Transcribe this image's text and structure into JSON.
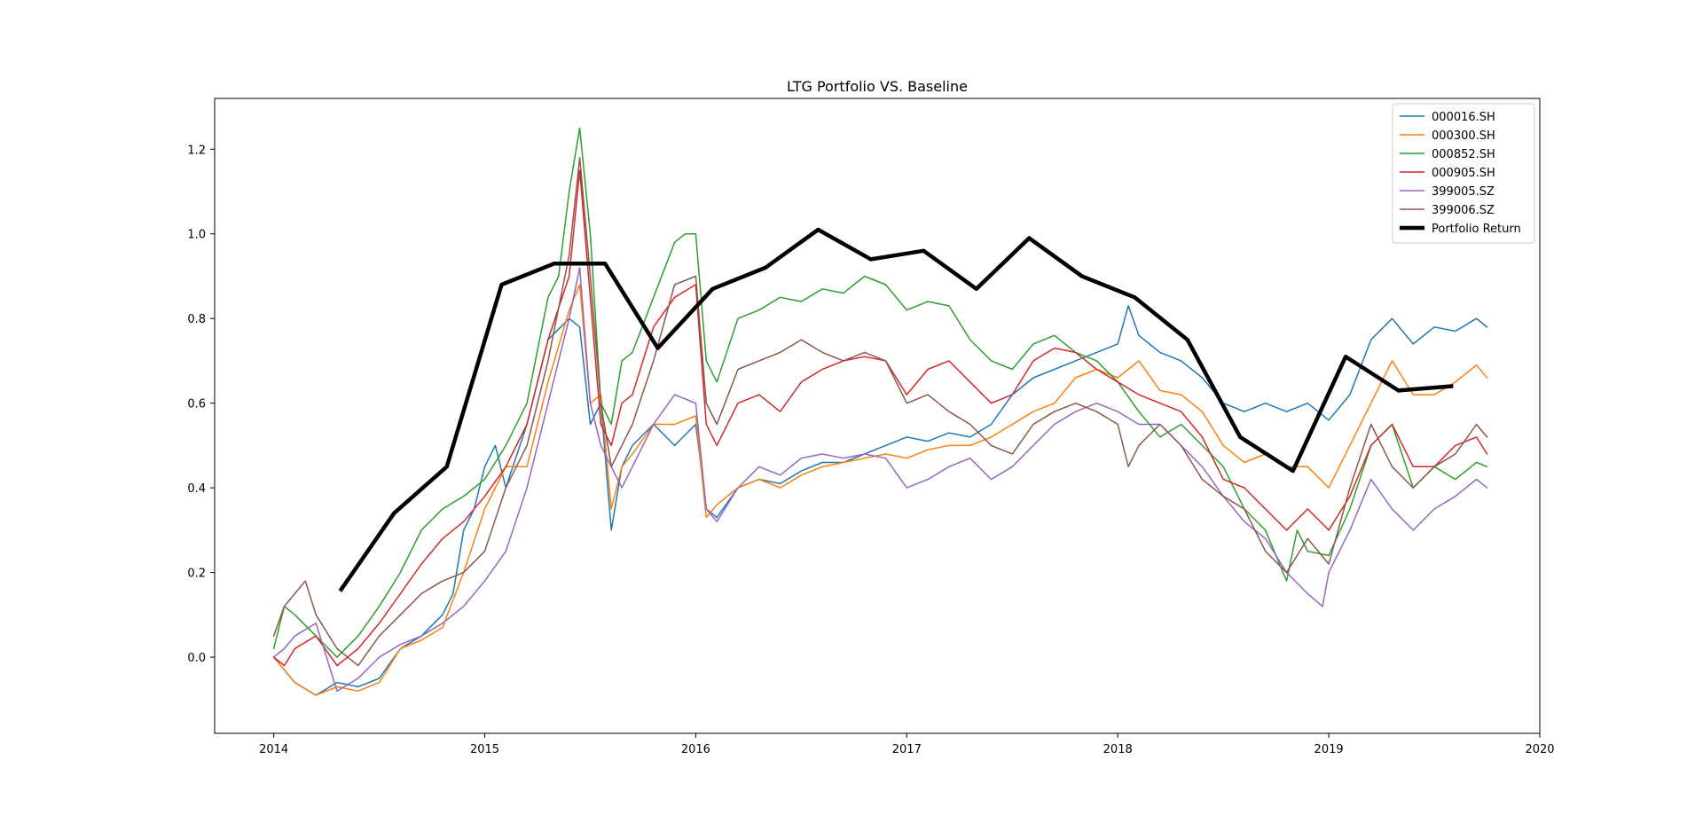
{
  "chart_data": {
    "type": "line",
    "title": "LTG Portfolio VS. Baseline",
    "xlabel": "",
    "ylabel": "",
    "xlim": [
      2013.72,
      2020.0
    ],
    "ylim": [
      -0.18,
      1.32
    ],
    "x_ticks": [
      2014,
      2015,
      2016,
      2017,
      2018,
      2019,
      2020
    ],
    "x_tick_labels": [
      "2014",
      "2015",
      "2016",
      "2017",
      "2018",
      "2019",
      "2020"
    ],
    "y_ticks": [
      0.0,
      0.2,
      0.4,
      0.6,
      0.8,
      1.0,
      1.2
    ],
    "y_tick_labels": [
      "0.0",
      "0.2",
      "0.4",
      "0.6",
      "0.8",
      "1.0",
      "1.2"
    ],
    "grid": false,
    "legend_position": "top-right",
    "series": [
      {
        "name": "000016.SH",
        "color": "#1f77b4",
        "width": 1.5,
        "x": [
          2014.0,
          2014.1,
          2014.2,
          2014.3,
          2014.4,
          2014.5,
          2014.6,
          2014.7,
          2014.8,
          2014.85,
          2014.9,
          2014.95,
          2015.0,
          2015.05,
          2015.1,
          2015.2,
          2015.3,
          2015.4,
          2015.45,
          2015.5,
          2015.55,
          2015.6,
          2015.65,
          2015.7,
          2015.8,
          2015.9,
          2016.0,
          2016.05,
          2016.1,
          2016.2,
          2016.3,
          2016.4,
          2016.5,
          2016.6,
          2016.7,
          2016.8,
          2016.9,
          2017.0,
          2017.1,
          2017.2,
          2017.3,
          2017.4,
          2017.5,
          2017.6,
          2017.7,
          2017.8,
          2017.9,
          2018.0,
          2018.05,
          2018.1,
          2018.2,
          2018.3,
          2018.4,
          2018.5,
          2018.6,
          2018.7,
          2018.8,
          2018.9,
          2019.0,
          2019.1,
          2019.2,
          2019.3,
          2019.4,
          2019.5,
          2019.6,
          2019.7,
          2019.75
        ],
        "y": [
          0.0,
          -0.06,
          -0.09,
          -0.06,
          -0.07,
          -0.05,
          0.02,
          0.05,
          0.1,
          0.15,
          0.3,
          0.35,
          0.45,
          0.5,
          0.4,
          0.55,
          0.75,
          0.8,
          0.78,
          0.55,
          0.6,
          0.3,
          0.45,
          0.5,
          0.55,
          0.5,
          0.55,
          0.35,
          0.33,
          0.4,
          0.42,
          0.41,
          0.44,
          0.46,
          0.46,
          0.48,
          0.5,
          0.52,
          0.51,
          0.53,
          0.52,
          0.55,
          0.62,
          0.66,
          0.68,
          0.7,
          0.72,
          0.74,
          0.83,
          0.76,
          0.72,
          0.7,
          0.66,
          0.6,
          0.58,
          0.6,
          0.58,
          0.6,
          0.56,
          0.62,
          0.75,
          0.8,
          0.74,
          0.78,
          0.77,
          0.8,
          0.78
        ]
      },
      {
        "name": "000300.SH",
        "color": "#ff7f0e",
        "width": 1.5,
        "x": [
          2014.0,
          2014.1,
          2014.2,
          2014.3,
          2014.4,
          2014.5,
          2014.6,
          2014.7,
          2014.8,
          2014.9,
          2015.0,
          2015.1,
          2015.2,
          2015.3,
          2015.4,
          2015.45,
          2015.5,
          2015.55,
          2015.6,
          2015.65,
          2015.7,
          2015.8,
          2015.9,
          2016.0,
          2016.05,
          2016.1,
          2016.2,
          2016.3,
          2016.4,
          2016.5,
          2016.6,
          2016.7,
          2016.8,
          2016.9,
          2017.0,
          2017.1,
          2017.2,
          2017.3,
          2017.4,
          2017.5,
          2017.6,
          2017.7,
          2017.8,
          2017.9,
          2018.0,
          2018.1,
          2018.2,
          2018.3,
          2018.4,
          2018.5,
          2018.6,
          2018.7,
          2018.8,
          2018.9,
          2019.0,
          2019.1,
          2019.2,
          2019.3,
          2019.4,
          2019.5,
          2019.6,
          2019.7,
          2019.75
        ],
        "y": [
          0.0,
          -0.06,
          -0.09,
          -0.07,
          -0.08,
          -0.06,
          0.02,
          0.04,
          0.07,
          0.2,
          0.35,
          0.45,
          0.45,
          0.65,
          0.82,
          0.88,
          0.6,
          0.62,
          0.35,
          0.45,
          0.48,
          0.55,
          0.55,
          0.57,
          0.33,
          0.36,
          0.4,
          0.42,
          0.4,
          0.43,
          0.45,
          0.46,
          0.47,
          0.48,
          0.47,
          0.49,
          0.5,
          0.5,
          0.52,
          0.55,
          0.58,
          0.6,
          0.66,
          0.68,
          0.66,
          0.7,
          0.63,
          0.62,
          0.58,
          0.5,
          0.46,
          0.48,
          0.45,
          0.45,
          0.4,
          0.5,
          0.6,
          0.7,
          0.62,
          0.62,
          0.65,
          0.69,
          0.66
        ]
      },
      {
        "name": "000852.SH",
        "color": "#2ca02c",
        "width": 1.5,
        "x": [
          2014.0,
          2014.05,
          2014.1,
          2014.2,
          2014.3,
          2014.4,
          2014.5,
          2014.6,
          2014.7,
          2014.8,
          2014.9,
          2015.0,
          2015.1,
          2015.2,
          2015.3,
          2015.35,
          2015.4,
          2015.45,
          2015.5,
          2015.55,
          2015.6,
          2015.65,
          2015.7,
          2015.8,
          2015.9,
          2015.95,
          2016.0,
          2016.05,
          2016.1,
          2016.2,
          2016.3,
          2016.4,
          2016.5,
          2016.6,
          2016.7,
          2016.8,
          2016.9,
          2017.0,
          2017.1,
          2017.2,
          2017.3,
          2017.4,
          2017.5,
          2017.6,
          2017.7,
          2017.8,
          2017.9,
          2018.0,
          2018.1,
          2018.2,
          2018.3,
          2018.4,
          2018.5,
          2018.6,
          2018.7,
          2018.8,
          2018.85,
          2018.9,
          2019.0,
          2019.1,
          2019.2,
          2019.3,
          2019.4,
          2019.5,
          2019.6,
          2019.7,
          2019.75
        ],
        "y": [
          0.02,
          0.12,
          0.1,
          0.05,
          0.0,
          0.05,
          0.12,
          0.2,
          0.3,
          0.35,
          0.38,
          0.42,
          0.5,
          0.6,
          0.85,
          0.9,
          1.1,
          1.25,
          1.0,
          0.6,
          0.55,
          0.7,
          0.72,
          0.85,
          0.98,
          1.0,
          1.0,
          0.7,
          0.65,
          0.8,
          0.82,
          0.85,
          0.84,
          0.87,
          0.86,
          0.9,
          0.88,
          0.82,
          0.84,
          0.83,
          0.75,
          0.7,
          0.68,
          0.74,
          0.76,
          0.72,
          0.7,
          0.65,
          0.58,
          0.52,
          0.55,
          0.5,
          0.45,
          0.35,
          0.3,
          0.18,
          0.3,
          0.25,
          0.24,
          0.35,
          0.5,
          0.55,
          0.4,
          0.45,
          0.42,
          0.46,
          0.45
        ]
      },
      {
        "name": "000905.SH",
        "color": "#d62728",
        "width": 1.5,
        "x": [
          2014.0,
          2014.05,
          2014.1,
          2014.2,
          2014.3,
          2014.4,
          2014.5,
          2014.6,
          2014.7,
          2014.8,
          2014.9,
          2015.0,
          2015.1,
          2015.2,
          2015.3,
          2015.4,
          2015.45,
          2015.5,
          2015.55,
          2015.6,
          2015.65,
          2015.7,
          2015.8,
          2015.9,
          2016.0,
          2016.05,
          2016.1,
          2016.2,
          2016.3,
          2016.4,
          2016.5,
          2016.6,
          2016.7,
          2016.8,
          2016.9,
          2017.0,
          2017.1,
          2017.2,
          2017.3,
          2017.4,
          2017.5,
          2017.6,
          2017.7,
          2017.8,
          2017.9,
          2018.0,
          2018.1,
          2018.2,
          2018.3,
          2018.4,
          2018.5,
          2018.6,
          2018.7,
          2018.8,
          2018.9,
          2019.0,
          2019.1,
          2019.2,
          2019.3,
          2019.4,
          2019.5,
          2019.6,
          2019.7,
          2019.75
        ],
        "y": [
          0.0,
          -0.02,
          0.02,
          0.05,
          -0.02,
          0.02,
          0.08,
          0.15,
          0.22,
          0.28,
          0.32,
          0.38,
          0.45,
          0.55,
          0.75,
          0.9,
          1.15,
          0.85,
          0.55,
          0.5,
          0.6,
          0.62,
          0.78,
          0.85,
          0.88,
          0.55,
          0.5,
          0.6,
          0.62,
          0.58,
          0.65,
          0.68,
          0.7,
          0.71,
          0.7,
          0.62,
          0.68,
          0.7,
          0.65,
          0.6,
          0.62,
          0.7,
          0.73,
          0.72,
          0.68,
          0.65,
          0.62,
          0.6,
          0.58,
          0.52,
          0.42,
          0.4,
          0.35,
          0.3,
          0.35,
          0.3,
          0.38,
          0.5,
          0.55,
          0.45,
          0.45,
          0.5,
          0.52,
          0.48
        ]
      },
      {
        "name": "399005.SZ",
        "color": "#9467bd",
        "width": 1.5,
        "x": [
          2014.0,
          2014.05,
          2014.1,
          2014.2,
          2014.3,
          2014.4,
          2014.5,
          2014.6,
          2014.7,
          2014.8,
          2014.9,
          2015.0,
          2015.1,
          2015.2,
          2015.3,
          2015.4,
          2015.45,
          2015.5,
          2015.55,
          2015.6,
          2015.65,
          2015.7,
          2015.8,
          2015.9,
          2016.0,
          2016.05,
          2016.1,
          2016.2,
          2016.3,
          2016.4,
          2016.5,
          2016.6,
          2016.7,
          2016.8,
          2016.9,
          2017.0,
          2017.1,
          2017.2,
          2017.3,
          2017.4,
          2017.5,
          2017.6,
          2017.7,
          2017.8,
          2017.9,
          2018.0,
          2018.1,
          2018.2,
          2018.3,
          2018.4,
          2018.5,
          2018.6,
          2018.7,
          2018.8,
          2018.9,
          2018.97,
          2019.0,
          2019.1,
          2019.2,
          2019.3,
          2019.4,
          2019.5,
          2019.6,
          2019.7,
          2019.75
        ],
        "y": [
          0.0,
          0.02,
          0.05,
          0.08,
          -0.08,
          -0.05,
          0.0,
          0.03,
          0.05,
          0.08,
          0.12,
          0.18,
          0.25,
          0.4,
          0.6,
          0.8,
          0.92,
          0.6,
          0.5,
          0.45,
          0.4,
          0.45,
          0.55,
          0.62,
          0.6,
          0.35,
          0.32,
          0.4,
          0.45,
          0.43,
          0.47,
          0.48,
          0.47,
          0.48,
          0.47,
          0.4,
          0.42,
          0.45,
          0.47,
          0.42,
          0.45,
          0.5,
          0.55,
          0.58,
          0.6,
          0.58,
          0.55,
          0.55,
          0.5,
          0.45,
          0.38,
          0.32,
          0.28,
          0.2,
          0.15,
          0.12,
          0.2,
          0.3,
          0.42,
          0.35,
          0.3,
          0.35,
          0.38,
          0.42,
          0.4
        ]
      },
      {
        "name": "399006.SZ",
        "color": "#8c564b",
        "width": 1.5,
        "x": [
          2014.0,
          2014.05,
          2014.1,
          2014.15,
          2014.2,
          2014.3,
          2014.4,
          2014.5,
          2014.6,
          2014.7,
          2014.8,
          2014.9,
          2015.0,
          2015.1,
          2015.2,
          2015.3,
          2015.4,
          2015.45,
          2015.5,
          2015.55,
          2015.6,
          2015.65,
          2015.7,
          2015.8,
          2015.9,
          2016.0,
          2016.05,
          2016.1,
          2016.2,
          2016.3,
          2016.4,
          2016.5,
          2016.6,
          2016.7,
          2016.8,
          2016.9,
          2017.0,
          2017.1,
          2017.2,
          2017.3,
          2017.4,
          2017.5,
          2017.6,
          2017.7,
          2017.8,
          2017.9,
          2018.0,
          2018.05,
          2018.1,
          2018.2,
          2018.3,
          2018.4,
          2018.5,
          2018.6,
          2018.7,
          2018.8,
          2018.9,
          2019.0,
          2019.1,
          2019.2,
          2019.3,
          2019.4,
          2019.5,
          2019.6,
          2019.7,
          2019.75
        ],
        "y": [
          0.05,
          0.12,
          0.15,
          0.18,
          0.1,
          0.02,
          -0.02,
          0.05,
          0.1,
          0.15,
          0.18,
          0.2,
          0.25,
          0.4,
          0.5,
          0.7,
          0.95,
          1.18,
          0.9,
          0.6,
          0.45,
          0.5,
          0.55,
          0.7,
          0.88,
          0.9,
          0.6,
          0.55,
          0.68,
          0.7,
          0.72,
          0.75,
          0.72,
          0.7,
          0.72,
          0.7,
          0.6,
          0.62,
          0.58,
          0.55,
          0.5,
          0.48,
          0.55,
          0.58,
          0.6,
          0.58,
          0.55,
          0.45,
          0.5,
          0.55,
          0.5,
          0.42,
          0.38,
          0.35,
          0.25,
          0.2,
          0.28,
          0.22,
          0.4,
          0.55,
          0.45,
          0.4,
          0.45,
          0.48,
          0.55,
          0.52
        ]
      },
      {
        "name": "Portfolio Return",
        "color": "#000000",
        "width": 4.5,
        "x": [
          2014.32,
          2014.57,
          2014.82,
          2015.08,
          2015.33,
          2015.57,
          2015.82,
          2016.08,
          2016.33,
          2016.58,
          2016.83,
          2017.08,
          2017.33,
          2017.58,
          2017.83,
          2018.08,
          2018.33,
          2018.58,
          2018.83,
          2019.08,
          2019.33,
          2019.58
        ],
        "y": [
          0.16,
          0.34,
          0.45,
          0.88,
          0.93,
          0.93,
          0.73,
          0.87,
          0.92,
          1.01,
          0.94,
          0.96,
          0.87,
          0.99,
          0.9,
          0.85,
          0.75,
          0.52,
          0.44,
          0.71,
          0.63,
          0.64
        ]
      }
    ]
  }
}
